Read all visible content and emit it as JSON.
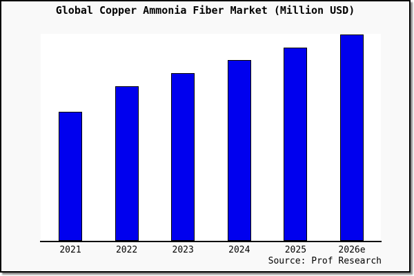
{
  "title": "Global Copper Ammonia Fiber Market (Million USD)",
  "source_credit": "Source: Prof Research",
  "colors": {
    "bar_fill": "#0000ee",
    "bar_outline": "#000000",
    "frame_background": "#f9f9f9",
    "plot_background": "#ffffff",
    "axis_line": "#000000",
    "frame_border": "#000000",
    "text": "#000000"
  },
  "chart_data": {
    "type": "bar",
    "title": "Global Copper Ammonia Fiber Market (Million USD)",
    "categories": [
      "2021",
      "2022",
      "2023",
      "2024",
      "2025",
      "2026e"
    ],
    "series": [
      {
        "name": "Global Copper Ammonia Fiber Market (Million USD)",
        "values": [
          62.5,
          74.9,
          81.3,
          87.6,
          93.6,
          100
        ]
      }
    ],
    "value_note": "No numeric value axis is shown in the chart; values are relative bar heights scaled so 2026e = 100",
    "xlabel": "",
    "ylabel": "",
    "ylim": [
      0,
      100
    ],
    "grid": false,
    "legend": null,
    "bar_color": "#0000ee",
    "source": "Source: Prof Research"
  }
}
